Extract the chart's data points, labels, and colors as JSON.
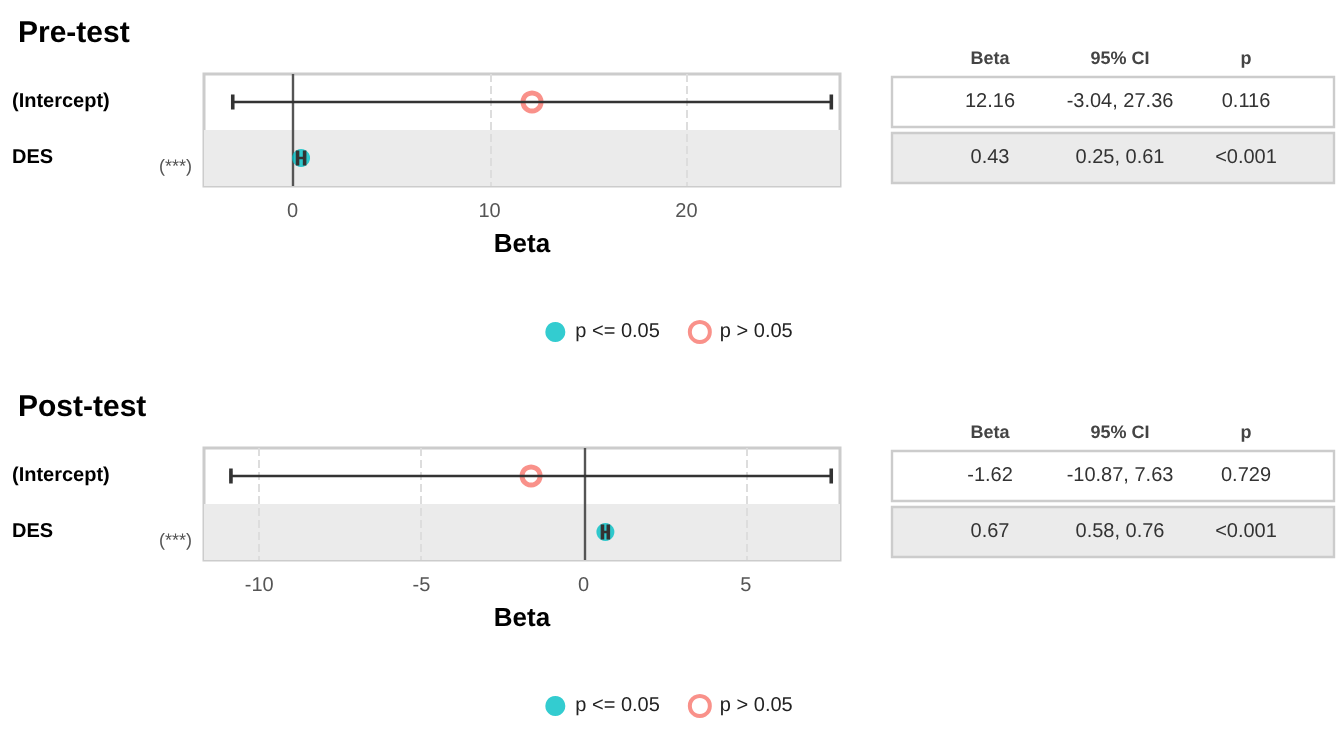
{
  "chart_data": [
    {
      "type": "scatter",
      "title": "Pre-test",
      "xlabel": "Beta",
      "orientation": "horizontal",
      "categories": [
        "(Intercept)",
        "DES"
      ],
      "xlim": [
        -4.5,
        27.8
      ],
      "xticks": [
        0,
        10,
        20
      ],
      "grid": "x",
      "legend": "bottom",
      "marker": "circle",
      "series": [
        {
          "name": "p <= 0.05",
          "color": "#00bfc4",
          "values": [
            null,
            0.43
          ],
          "errors": [
            null,
            [
              0.25,
              0.61
            ]
          ]
        },
        {
          "name": "p > 0.05",
          "color": "#f8766d",
          "values": [
            12.16,
            null
          ],
          "errors": [
            [
              -3.04,
              27.36
            ],
            null
          ]
        }
      ],
      "ref_lines": [
        {
          "axis": "x",
          "value": 0,
          "color": "#555555"
        }
      ],
      "bands": [
        {
          "axis": "y",
          "from": "DES",
          "to": "DES",
          "color": "#ebebeb"
        }
      ],
      "annotations": [
        "Beta",
        "95% CI",
        "p",
        "12.16",
        "-3.04, 27.36",
        "0.116",
        "0.43",
        "0.25, 0.61",
        "<0.001",
        "(***)"
      ]
    },
    {
      "type": "scatter",
      "title": "Post-test",
      "xlabel": "Beta",
      "orientation": "horizontal",
      "categories": [
        "(Intercept)",
        "DES"
      ],
      "xlim": [
        -11.7,
        7.9
      ],
      "xticks": [
        -10,
        -5,
        0,
        5
      ],
      "grid": "x",
      "legend": "bottom",
      "marker": "circle",
      "series": [
        {
          "name": "p <= 0.05",
          "color": "#00bfc4",
          "values": [
            null,
            0.67
          ],
          "errors": [
            null,
            [
              0.58,
              0.76
            ]
          ]
        },
        {
          "name": "p > 0.05",
          "color": "#f8766d",
          "values": [
            -1.62,
            null
          ],
          "errors": [
            [
              -10.87,
              7.63
            ],
            null
          ]
        }
      ],
      "ref_lines": [
        {
          "axis": "x",
          "value": 0,
          "color": "#555555"
        }
      ],
      "bands": [
        {
          "axis": "y",
          "from": "DES",
          "to": "DES",
          "color": "#ebebeb"
        }
      ],
      "annotations": [
        "Beta",
        "95% CI",
        "p",
        "-1.62",
        "-10.87, 7.63",
        "0.729",
        "0.67",
        "0.58, 0.76",
        "<0.001",
        "(***)"
      ]
    }
  ]
}
